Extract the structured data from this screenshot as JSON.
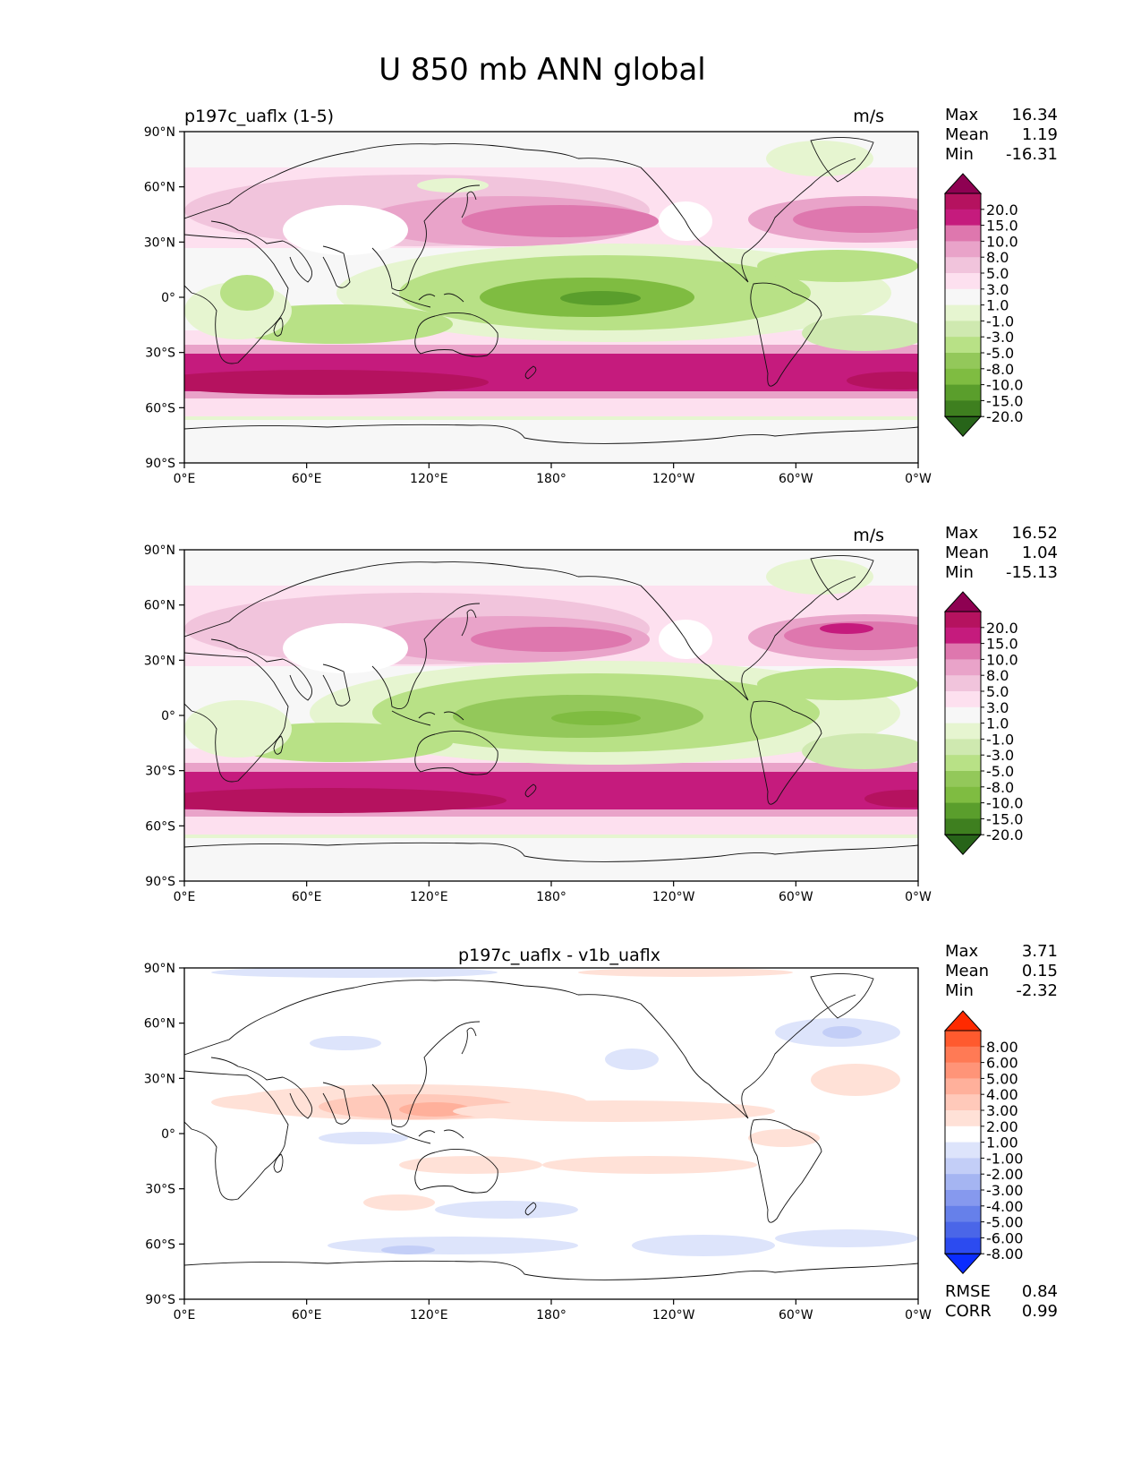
{
  "figure": {
    "title": "U 850 mb ANN global"
  },
  "panels": [
    {
      "left_title": "p197c_uaflx (1-5)",
      "center_title": "",
      "units": "m/s",
      "stats": [
        {
          "label": "Max",
          "value": "16.34"
        },
        {
          "label": "Mean",
          "value": "1.19"
        },
        {
          "label": "Min",
          "value": "-16.31"
        }
      ],
      "colorbar": {
        "labels": [
          "20.0",
          "15.0",
          "10.0",
          "8.0",
          "5.0",
          "3.0",
          "1.0",
          "-1.0",
          "-3.0",
          "-5.0",
          "-8.0",
          "-10.0",
          "-15.0",
          "-20.0"
        ],
        "colors": [
          "#8e0152",
          "#b5125f",
          "#c51b7d",
          "#de77ae",
          "#e9a3c9",
          "#f1c4dc",
          "#fde0ef",
          "#f7f7f7",
          "#e6f5d0",
          "#cfe9b0",
          "#b8e186",
          "#93c85a",
          "#7fbc41",
          "#5a9e2c",
          "#3e7f1f",
          "#276419"
        ]
      }
    },
    {
      "left_title": "",
      "center_title": "",
      "units": "m/s",
      "stats": [
        {
          "label": "Max",
          "value": "16.52"
        },
        {
          "label": "Mean",
          "value": "1.04"
        },
        {
          "label": "Min",
          "value": "-15.13"
        }
      ],
      "colorbar": {
        "labels": [
          "20.0",
          "15.0",
          "10.0",
          "8.0",
          "5.0",
          "3.0",
          "1.0",
          "-1.0",
          "-3.0",
          "-5.0",
          "-8.0",
          "-10.0",
          "-15.0",
          "-20.0"
        ],
        "colors": [
          "#8e0152",
          "#b5125f",
          "#c51b7d",
          "#de77ae",
          "#e9a3c9",
          "#f1c4dc",
          "#fde0ef",
          "#f7f7f7",
          "#e6f5d0",
          "#cfe9b0",
          "#b8e186",
          "#93c85a",
          "#7fbc41",
          "#5a9e2c",
          "#3e7f1f",
          "#276419"
        ]
      }
    },
    {
      "left_title": "",
      "center_title": "p197c_uaflx - v1b_uaflx",
      "units": "",
      "stats": [
        {
          "label": "Max",
          "value": "3.71"
        },
        {
          "label": "Mean",
          "value": "0.15"
        },
        {
          "label": "Min",
          "value": "-2.32"
        }
      ],
      "metrics": [
        {
          "label": "RMSE",
          "value": "0.84"
        },
        {
          "label": "CORR",
          "value": "0.99"
        }
      ],
      "colorbar": {
        "labels": [
          "8.00",
          "6.00",
          "5.00",
          "4.00",
          "3.00",
          "2.00",
          "1.00",
          "-1.00",
          "-2.00",
          "-3.00",
          "-4.00",
          "-5.00",
          "-6.00",
          "-8.00"
        ],
        "colors": [
          "#ff2a00",
          "#ff5a2e",
          "#ff7a55",
          "#ff9478",
          "#ffb09b",
          "#ffc9ba",
          "#ffe1d7",
          "#ffffff",
          "#dde4fb",
          "#c3cef7",
          "#a5b5f2",
          "#8699ee",
          "#6680ea",
          "#4a66e8",
          "#2c4bf0",
          "#0a2cff"
        ]
      }
    }
  ],
  "axes": {
    "lat_ticks": [
      "90°N",
      "60°N",
      "30°N",
      "0°",
      "30°S",
      "60°S",
      "90°S"
    ],
    "lon_ticks": [
      "0°E",
      "60°E",
      "120°E",
      "180°",
      "120°W",
      "60°W",
      "0°W"
    ]
  }
}
